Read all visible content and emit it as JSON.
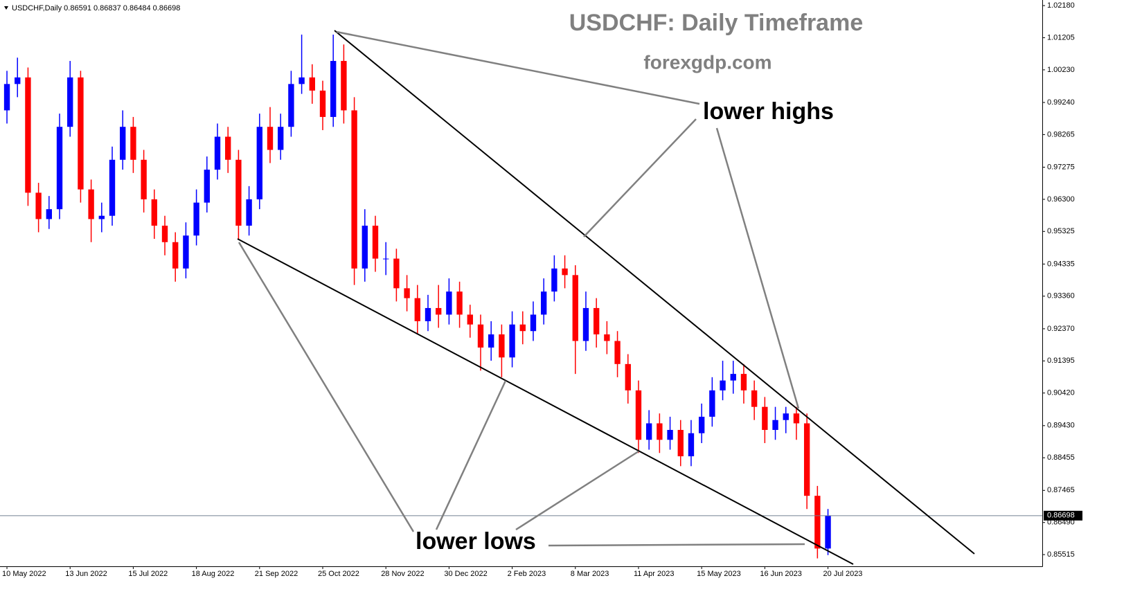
{
  "chart_data": {
    "type": "candlestick",
    "header": "USDCHF,Daily  0.86591 0.86837 0.86484 0.86698",
    "title": "USDCHF: Daily Timeframe",
    "subtitle": "forexgdp.com",
    "annotations": [
      "lower highs",
      "lower lows"
    ],
    "up_color": "#0000ff",
    "down_color": "#ff0000",
    "last_price": 0.86698,
    "ylim": [
      0.8516,
      1.0235
    ],
    "yticks": [
      {
        "value": 1.0218,
        "label": "1.02180"
      },
      {
        "value": 1.01205,
        "label": "1.01205"
      },
      {
        "value": 1.0023,
        "label": "1.00230"
      },
      {
        "value": 0.9924,
        "label": "0.99240"
      },
      {
        "value": 0.98265,
        "label": "0.98265"
      },
      {
        "value": 0.97275,
        "label": "0.97275"
      },
      {
        "value": 0.963,
        "label": "0.96300"
      },
      {
        "value": 0.95325,
        "label": "0.95325"
      },
      {
        "value": 0.94335,
        "label": "0.94335"
      },
      {
        "value": 0.9336,
        "label": "0.93360"
      },
      {
        "value": 0.9237,
        "label": "0.92370"
      },
      {
        "value": 0.91395,
        "label": "0.91395"
      },
      {
        "value": 0.9042,
        "label": "0.90420"
      },
      {
        "value": 0.8943,
        "label": "0.89430"
      },
      {
        "value": 0.88455,
        "label": "0.88455"
      },
      {
        "value": 0.87465,
        "label": "0.87465"
      },
      {
        "value": 0.8649,
        "label": "0.86490"
      },
      {
        "value": 0.85515,
        "label": "0.85515"
      }
    ],
    "xlim": [
      -0.66,
      98.36
    ],
    "xticks": [
      {
        "value": 0,
        "label": "10 May 2022"
      },
      {
        "value": 6,
        "label": "13 Jun 2022"
      },
      {
        "value": 12,
        "label": "15 Jul 2022"
      },
      {
        "value": 18,
        "label": "18 Aug 2022"
      },
      {
        "value": 24,
        "label": "21 Sep 2022"
      },
      {
        "value": 30,
        "label": "25 Oct 2022"
      },
      {
        "value": 36,
        "label": "28 Nov 2022"
      },
      {
        "value": 42,
        "label": "30 Dec 2022"
      },
      {
        "value": 48,
        "label": "2 Feb 2023"
      },
      {
        "value": 54,
        "label": "8 Mar 2023"
      },
      {
        "value": 60,
        "label": "11 Apr 2023"
      },
      {
        "value": 66,
        "label": "15 May 2023"
      },
      {
        "value": 72,
        "label": "16 Jun 2023"
      },
      {
        "value": 78,
        "label": "20 Jul 2023"
      }
    ],
    "candles": [
      {
        "open": 0.99,
        "high": 1.002,
        "low": 0.986,
        "close": 0.998
      },
      {
        "open": 0.998,
        "high": 1.006,
        "low": 0.994,
        "close": 1.0
      },
      {
        "open": 1.0,
        "high": 1.003,
        "low": 0.961,
        "close": 0.965
      },
      {
        "open": 0.965,
        "high": 0.968,
        "low": 0.953,
        "close": 0.957
      },
      {
        "open": 0.957,
        "high": 0.964,
        "low": 0.954,
        "close": 0.96
      },
      {
        "open": 0.96,
        "high": 0.989,
        "low": 0.957,
        "close": 0.985
      },
      {
        "open": 0.985,
        "high": 1.005,
        "low": 0.982,
        "close": 1.0
      },
      {
        "open": 1.0,
        "high": 1.002,
        "low": 0.962,
        "close": 0.966
      },
      {
        "open": 0.966,
        "high": 0.969,
        "low": 0.95,
        "close": 0.957
      },
      {
        "open": 0.957,
        "high": 0.962,
        "low": 0.953,
        "close": 0.958
      },
      {
        "open": 0.958,
        "high": 0.979,
        "low": 0.955,
        "close": 0.975
      },
      {
        "open": 0.975,
        "high": 0.99,
        "low": 0.972,
        "close": 0.985
      },
      {
        "open": 0.985,
        "high": 0.988,
        "low": 0.971,
        "close": 0.975
      },
      {
        "open": 0.975,
        "high": 0.978,
        "low": 0.959,
        "close": 0.963
      },
      {
        "open": 0.963,
        "high": 0.966,
        "low": 0.951,
        "close": 0.955
      },
      {
        "open": 0.955,
        "high": 0.958,
        "low": 0.946,
        "close": 0.95
      },
      {
        "open": 0.95,
        "high": 0.953,
        "low": 0.938,
        "close": 0.942
      },
      {
        "open": 0.942,
        "high": 0.956,
        "low": 0.939,
        "close": 0.952
      },
      {
        "open": 0.952,
        "high": 0.966,
        "low": 0.949,
        "close": 0.962
      },
      {
        "open": 0.962,
        "high": 0.976,
        "low": 0.959,
        "close": 0.972
      },
      {
        "open": 0.972,
        "high": 0.986,
        "low": 0.969,
        "close": 0.982
      },
      {
        "open": 0.982,
        "high": 0.985,
        "low": 0.971,
        "close": 0.975
      },
      {
        "open": 0.975,
        "high": 0.978,
        "low": 0.951,
        "close": 0.955
      },
      {
        "open": 0.955,
        "high": 0.967,
        "low": 0.952,
        "close": 0.963
      },
      {
        "open": 0.963,
        "high": 0.989,
        "low": 0.96,
        "close": 0.985
      },
      {
        "open": 0.985,
        "high": 0.991,
        "low": 0.974,
        "close": 0.978
      },
      {
        "open": 0.978,
        "high": 0.989,
        "low": 0.975,
        "close": 0.985
      },
      {
        "open": 0.985,
        "high": 1.002,
        "low": 0.982,
        "close": 0.998
      },
      {
        "open": 0.998,
        "high": 1.013,
        "low": 0.995,
        "close": 1.0
      },
      {
        "open": 1.0,
        "high": 1.004,
        "low": 0.992,
        "close": 0.996
      },
      {
        "open": 0.996,
        "high": 0.999,
        "low": 0.984,
        "close": 0.988
      },
      {
        "open": 0.988,
        "high": 1.013,
        "low": 0.985,
        "close": 1.005
      },
      {
        "open": 1.005,
        "high": 1.01,
        "low": 0.986,
        "close": 0.99
      },
      {
        "open": 0.99,
        "high": 0.994,
        "low": 0.937,
        "close": 0.942
      },
      {
        "open": 0.942,
        "high": 0.96,
        "low": 0.938,
        "close": 0.955
      },
      {
        "open": 0.955,
        "high": 0.958,
        "low": 0.941,
        "close": 0.945
      },
      {
        "open": 0.945,
        "high": 0.95,
        "low": 0.94,
        "close": 0.945
      },
      {
        "open": 0.945,
        "high": 0.948,
        "low": 0.932,
        "close": 0.936
      },
      {
        "open": 0.936,
        "high": 0.94,
        "low": 0.929,
        "close": 0.933
      },
      {
        "open": 0.933,
        "high": 0.937,
        "low": 0.922,
        "close": 0.926
      },
      {
        "open": 0.926,
        "high": 0.934,
        "low": 0.923,
        "close": 0.93
      },
      {
        "open": 0.93,
        "high": 0.937,
        "low": 0.924,
        "close": 0.928
      },
      {
        "open": 0.928,
        "high": 0.939,
        "low": 0.925,
        "close": 0.935
      },
      {
        "open": 0.935,
        "high": 0.938,
        "low": 0.924,
        "close": 0.928
      },
      {
        "open": 0.928,
        "high": 0.931,
        "low": 0.921,
        "close": 0.925
      },
      {
        "open": 0.925,
        "high": 0.928,
        "low": 0.911,
        "close": 0.918
      },
      {
        "open": 0.918,
        "high": 0.926,
        "low": 0.914,
        "close": 0.922
      },
      {
        "open": 0.922,
        "high": 0.925,
        "low": 0.909,
        "close": 0.915
      },
      {
        "open": 0.915,
        "high": 0.929,
        "low": 0.912,
        "close": 0.925
      },
      {
        "open": 0.925,
        "high": 0.929,
        "low": 0.919,
        "close": 0.923
      },
      {
        "open": 0.923,
        "high": 0.932,
        "low": 0.92,
        "close": 0.928
      },
      {
        "open": 0.928,
        "high": 0.939,
        "low": 0.925,
        "close": 0.935
      },
      {
        "open": 0.935,
        "high": 0.946,
        "low": 0.932,
        "close": 0.942
      },
      {
        "open": 0.942,
        "high": 0.946,
        "low": 0.936,
        "close": 0.94
      },
      {
        "open": 0.94,
        "high": 0.943,
        "low": 0.91,
        "close": 0.92
      },
      {
        "open": 0.92,
        "high": 0.935,
        "low": 0.917,
        "close": 0.93
      },
      {
        "open": 0.93,
        "high": 0.933,
        "low": 0.918,
        "close": 0.922
      },
      {
        "open": 0.922,
        "high": 0.926,
        "low": 0.916,
        "close": 0.92
      },
      {
        "open": 0.92,
        "high": 0.923,
        "low": 0.909,
        "close": 0.913
      },
      {
        "open": 0.913,
        "high": 0.916,
        "low": 0.901,
        "close": 0.905
      },
      {
        "open": 0.905,
        "high": 0.908,
        "low": 0.886,
        "close": 0.89
      },
      {
        "open": 0.89,
        "high": 0.899,
        "low": 0.887,
        "close": 0.895
      },
      {
        "open": 0.895,
        "high": 0.898,
        "low": 0.886,
        "close": 0.89
      },
      {
        "open": 0.89,
        "high": 0.897,
        "low": 0.887,
        "close": 0.893
      },
      {
        "open": 0.893,
        "high": 0.896,
        "low": 0.882,
        "close": 0.885
      },
      {
        "open": 0.885,
        "high": 0.896,
        "low": 0.882,
        "close": 0.892
      },
      {
        "open": 0.892,
        "high": 0.901,
        "low": 0.889,
        "close": 0.897
      },
      {
        "open": 0.897,
        "high": 0.909,
        "low": 0.894,
        "close": 0.905
      },
      {
        "open": 0.905,
        "high": 0.914,
        "low": 0.902,
        "close": 0.908
      },
      {
        "open": 0.908,
        "high": 0.914,
        "low": 0.904,
        "close": 0.91
      },
      {
        "open": 0.91,
        "high": 0.913,
        "low": 0.901,
        "close": 0.905
      },
      {
        "open": 0.905,
        "high": 0.908,
        "low": 0.896,
        "close": 0.9
      },
      {
        "open": 0.9,
        "high": 0.903,
        "low": 0.889,
        "close": 0.893
      },
      {
        "open": 0.893,
        "high": 0.9,
        "low": 0.89,
        "close": 0.896
      },
      {
        "open": 0.896,
        "high": 0.9,
        "low": 0.892,
        "close": 0.898
      },
      {
        "open": 0.898,
        "high": 0.9,
        "low": 0.89,
        "close": 0.895
      },
      {
        "open": 0.895,
        "high": 0.898,
        "low": 0.869,
        "close": 0.873
      },
      {
        "open": 0.873,
        "high": 0.876,
        "low": 0.854,
        "close": 0.857
      },
      {
        "open": 0.857,
        "high": 0.869,
        "low": 0.855,
        "close": 0.867
      }
    ]
  }
}
